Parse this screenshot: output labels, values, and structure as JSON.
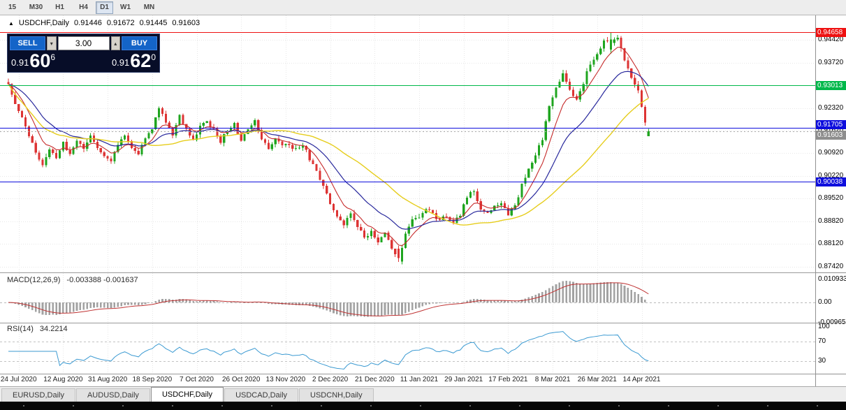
{
  "colors": {
    "bull": "#1fa51f",
    "bear": "#dd3434",
    "ma_fast": "#c62b2b",
    "ma_mid": "#28289c",
    "ma_slow": "#e6cd1c",
    "macd_hist": "#a2a2a2",
    "macd_signal": "#bf3232",
    "rsi_line": "#3b9ad2",
    "level_red": "#ee1111",
    "level_green": "#00b84a",
    "level_blue": "#0e0edd",
    "current_tag": "#8e8e8e",
    "grid": "#e7e7e7"
  },
  "icons": {
    "collapse_arrow": "▲",
    "spin_up": "▴",
    "spin_down": "▾"
  },
  "toolbar": {
    "items": [
      "15",
      "M30",
      "H1",
      "H4",
      "D1",
      "W1",
      "MN"
    ],
    "active_index": 4
  },
  "symbol_header": {
    "symbol": "USDCHF,Daily",
    "open": "0.91446",
    "high": "0.91672",
    "low": "0.91445",
    "close": "0.91603"
  },
  "trade_panel": {
    "sell_label": "SELL",
    "buy_label": "BUY",
    "volume": "3.00",
    "sell_price": {
      "prefix": "0.91",
      "big": "60",
      "sup": "6"
    },
    "buy_price": {
      "prefix": "0.91",
      "big": "62",
      "sup": "0"
    }
  },
  "price_axis": {
    "ticks": [
      "0.94420",
      "0.93720",
      "0.93020",
      "0.92320",
      "0.91620",
      "0.90920",
      "0.90220",
      "0.89520",
      "0.88820",
      "0.88120",
      "0.87420"
    ],
    "tags": [
      {
        "text": "0.94658",
        "price": 0.94658,
        "color_key": "level_red",
        "dy": 0
      },
      {
        "text": "0.93013",
        "price": 0.93013,
        "color_key": "level_green",
        "dy": 0
      },
      {
        "text": "0.91705",
        "price": 0.91705,
        "color_key": "level_blue",
        "dy": -5
      },
      {
        "text": "0.91603",
        "price": 0.91603,
        "color_key": "current_tag",
        "dy": 5
      },
      {
        "text": "0.90038",
        "price": 0.90038,
        "color_key": "level_blue",
        "dy": 0
      }
    ]
  },
  "levels": [
    {
      "price": 0.94658,
      "color_key": "level_red"
    },
    {
      "price": 0.93013,
      "color_key": "level_green"
    },
    {
      "price": 0.91705,
      "color_key": "level_blue"
    },
    {
      "price": 0.90038,
      "color_key": "level_blue"
    }
  ],
  "current_price": {
    "price": 0.91603,
    "text": "0.91603"
  },
  "indicators": {
    "macd": {
      "label": "MACD(12,26,9)",
      "values": "-0.003388 -0.001637",
      "axis": [
        {
          "text": "0.010933",
          "v": 0.010933
        },
        {
          "text": "0.00",
          "v": 0
        },
        {
          "text": "-0.00965",
          "v": -0.00965
        }
      ]
    },
    "rsi": {
      "label": "RSI(14)",
      "value": "34.2214",
      "axis": [
        {
          "text": "100",
          "v": 100
        },
        {
          "text": "70",
          "v": 70
        },
        {
          "text": "30",
          "v": 30
        }
      ],
      "dashed_levels": [
        70,
        30
      ]
    }
  },
  "tabs": {
    "items": [
      "EURUSD,Daily",
      "AUDUSD,Daily",
      "USDCHF,Daily",
      "USDCAD,Daily",
      "USDCNH,Daily"
    ],
    "active_index": 2
  },
  "chart_data": {
    "type": "candlestick",
    "title": "USDCHF, Daily",
    "bars": 188,
    "seed": 20210416,
    "ylim": [
      0.8725,
      0.9518
    ],
    "dates": {
      "first_bar": 3,
      "step": 13,
      "labels": [
        "24 Jul 2020",
        "12 Aug 2020",
        "31 Aug 2020",
        "18 Sep 2020",
        "7 Oct 2020",
        "26 Oct 2020",
        "13 Nov 2020",
        "2 Dec 2020",
        "21 Dec 2020",
        "11 Jan 2021",
        "29 Jan 2021",
        "17 Feb 2021",
        "8 Mar 2021",
        "26 Mar 2021",
        "14 Apr 2021"
      ]
    },
    "current_ohlc": {
      "open": 0.91446,
      "high": 0.91672,
      "low": 0.91445,
      "close": 0.91603
    },
    "high_extreme": {
      "bar": 176,
      "price": 0.94658
    },
    "low_extreme": {
      "bar": 114,
      "price": 0.8757
    },
    "moving_averages": [
      {
        "type": "ema",
        "period": 8,
        "color_key": "ma_fast",
        "width": 1.1
      },
      {
        "type": "ema",
        "period": 21,
        "color_key": "ma_mid",
        "width": 1.2
      },
      {
        "type": "sma",
        "period": 40,
        "color_key": "ma_slow",
        "width": 1.4
      }
    ],
    "macd_params": [
      12,
      26,
      9
    ],
    "rsi_period": 14,
    "close_path_anchors": [
      [
        0,
        0.93
      ],
      [
        2,
        0.9242
      ],
      [
        4,
        0.9198
      ],
      [
        6,
        0.915
      ],
      [
        8,
        0.909
      ],
      [
        10,
        0.9058
      ],
      [
        12,
        0.9105
      ],
      [
        14,
        0.9078
      ],
      [
        16,
        0.9122
      ],
      [
        18,
        0.9092
      ],
      [
        20,
        0.9135
      ],
      [
        22,
        0.9108
      ],
      [
        24,
        0.915
      ],
      [
        26,
        0.9112
      ],
      [
        28,
        0.9088
      ],
      [
        30,
        0.9072
      ],
      [
        32,
        0.9115
      ],
      [
        34,
        0.9152
      ],
      [
        36,
        0.9108
      ],
      [
        38,
        0.9085
      ],
      [
        40,
        0.914
      ],
      [
        42,
        0.9168
      ],
      [
        44,
        0.9232
      ],
      [
        46,
        0.9185
      ],
      [
        48,
        0.915
      ],
      [
        50,
        0.9212
      ],
      [
        52,
        0.9165
      ],
      [
        54,
        0.9135
      ],
      [
        56,
        0.9172
      ],
      [
        58,
        0.9188
      ],
      [
        60,
        0.9162
      ],
      [
        62,
        0.913
      ],
      [
        64,
        0.9165
      ],
      [
        66,
        0.9182
      ],
      [
        68,
        0.9132
      ],
      [
        70,
        0.9162
      ],
      [
        72,
        0.9188
      ],
      [
        74,
        0.9135
      ],
      [
        76,
        0.9102
      ],
      [
        78,
        0.914
      ],
      [
        80,
        0.9112
      ],
      [
        82,
        0.9122
      ],
      [
        84,
        0.9102
      ],
      [
        86,
        0.9118
      ],
      [
        88,
        0.9075
      ],
      [
        90,
        0.9035
      ],
      [
        92,
        0.8995
      ],
      [
        94,
        0.8932
      ],
      [
        96,
        0.8902
      ],
      [
        98,
        0.8872
      ],
      [
        100,
        0.8912
      ],
      [
        102,
        0.887
      ],
      [
        104,
        0.8832
      ],
      [
        106,
        0.8852
      ],
      [
        108,
        0.8822
      ],
      [
        110,
        0.8852
      ],
      [
        112,
        0.8798
      ],
      [
        114,
        0.8762
      ],
      [
        116,
        0.8845
      ],
      [
        118,
        0.8882
      ],
      [
        120,
        0.8892
      ],
      [
        122,
        0.8922
      ],
      [
        124,
        0.8902
      ],
      [
        126,
        0.8882
      ],
      [
        128,
        0.8902
      ],
      [
        130,
        0.8882
      ],
      [
        132,
        0.8905
      ],
      [
        134,
        0.8958
      ],
      [
        136,
        0.8978
      ],
      [
        138,
        0.8922
      ],
      [
        140,
        0.8902
      ],
      [
        142,
        0.8925
      ],
      [
        144,
        0.8942
      ],
      [
        146,
        0.8902
      ],
      [
        148,
        0.8932
      ],
      [
        150,
        0.8992
      ],
      [
        152,
        0.9042
      ],
      [
        154,
        0.9092
      ],
      [
        156,
        0.9135
      ],
      [
        158,
        0.9235
      ],
      [
        160,
        0.9295
      ],
      [
        162,
        0.9332
      ],
      [
        164,
        0.9288
      ],
      [
        166,
        0.9252
      ],
      [
        168,
        0.9305
      ],
      [
        170,
        0.9372
      ],
      [
        172,
        0.9402
      ],
      [
        174,
        0.9442
      ],
      [
        176,
        0.943
      ],
      [
        178,
        0.9445
      ],
      [
        180,
        0.9382
      ],
      [
        182,
        0.9322
      ],
      [
        184,
        0.9282
      ],
      [
        185,
        0.9232
      ],
      [
        186,
        0.9185
      ],
      [
        187,
        0.916
      ]
    ]
  }
}
